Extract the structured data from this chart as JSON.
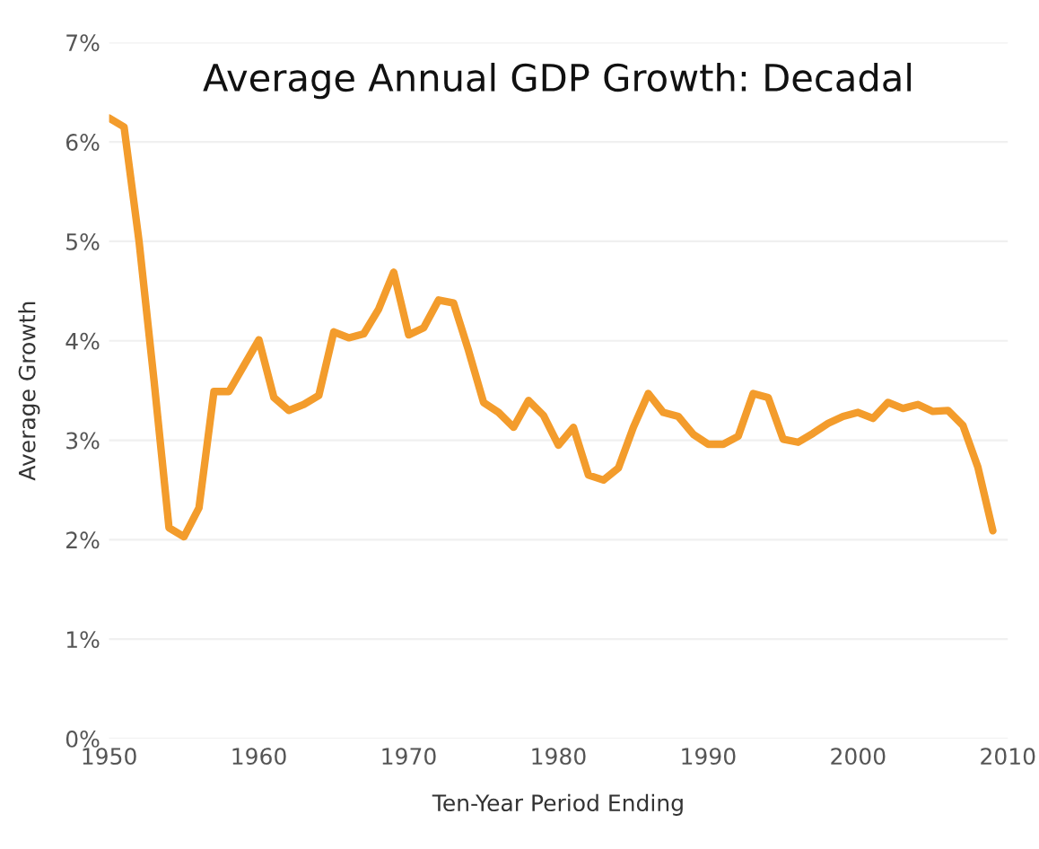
{
  "chart_data": {
    "type": "line",
    "title": "Average Annual GDP Growth: Decadal",
    "xlabel": "Ten-Year Period Ending",
    "ylabel": "Average Growth",
    "x": [
      1950,
      1951,
      1952,
      1953,
      1954,
      1955,
      1956,
      1957,
      1958,
      1959,
      1960,
      1961,
      1962,
      1963,
      1964,
      1965,
      1966,
      1967,
      1968,
      1969,
      1970,
      1971,
      1972,
      1973,
      1974,
      1975,
      1976,
      1977,
      1978,
      1979,
      1980,
      1981,
      1982,
      1983,
      1984,
      1985,
      1986,
      1987,
      1988,
      1989,
      1990,
      1991,
      1992,
      1993,
      1994,
      1995,
      1996,
      1997,
      1998,
      1999,
      2000,
      2001,
      2002,
      2003,
      2004,
      2005,
      2006,
      2007,
      2008,
      2009
    ],
    "series": [
      {
        "color": "#f39c2c",
        "values": [
          6.24,
          6.15,
          5.0,
          3.6,
          2.12,
          2.03,
          2.32,
          3.49,
          3.49,
          3.75,
          4.01,
          3.43,
          3.3,
          3.36,
          3.45,
          4.09,
          4.03,
          4.07,
          4.32,
          4.69,
          4.06,
          4.13,
          4.41,
          4.38,
          3.9,
          3.38,
          3.28,
          3.13,
          3.4,
          3.25,
          2.95,
          3.13,
          2.65,
          2.6,
          2.72,
          3.13,
          3.47,
          3.28,
          3.24,
          3.06,
          2.96,
          2.96,
          3.04,
          3.47,
          3.43,
          3.01,
          2.98,
          3.07,
          3.17,
          3.24,
          3.28,
          3.22,
          3.38,
          3.32,
          3.36,
          3.29,
          3.3,
          3.15,
          2.73,
          2.09
        ]
      }
    ],
    "xlim": [
      1950,
      2010
    ],
    "xticks": [
      1950,
      1960,
      1970,
      1980,
      1990,
      2000,
      2010
    ],
    "ylim": [
      0,
      7
    ],
    "yticks": [
      {
        "value": 0,
        "label": "0%"
      },
      {
        "value": 1,
        "label": "1%"
      },
      {
        "value": 2,
        "label": "2%"
      },
      {
        "value": 3,
        "label": "3%"
      },
      {
        "value": 4,
        "label": "4%"
      },
      {
        "value": 5,
        "label": "5%"
      },
      {
        "value": 6,
        "label": "6%"
      },
      {
        "value": 7,
        "label": "7%"
      }
    ],
    "grid": "y",
    "legend": false,
    "marker": "none",
    "line_style": "solid"
  }
}
